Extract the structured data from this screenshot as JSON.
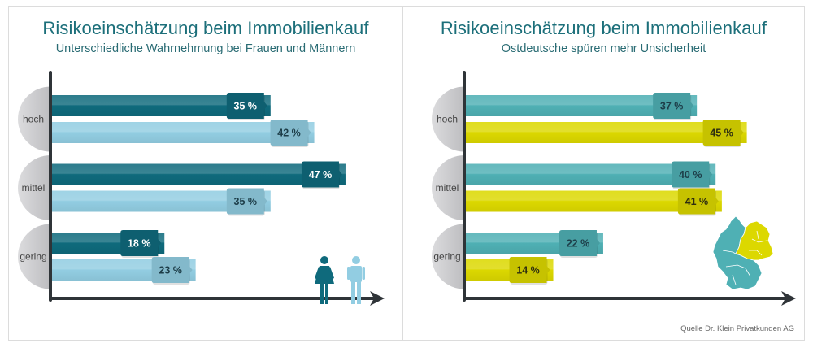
{
  "chart_data": [
    {
      "type": "bar",
      "orientation": "horizontal",
      "title": "Risikoeinschätzung beim Immobilienkauf",
      "subtitle": "Unterschiedliche Wahrnehmung bei Frauen und Männern",
      "categories": [
        "hoch",
        "mittel",
        "gering"
      ],
      "series": [
        {
          "name": "Frauen",
          "icon": "woman-icon",
          "color": "#0f6a7c",
          "label_color": "#ffffff",
          "values": [
            35,
            47,
            18
          ]
        },
        {
          "name": "Männer",
          "icon": "man-icon",
          "color": "#92cde2",
          "label_color": "#1d3d48",
          "values": [
            42,
            35,
            23
          ]
        }
      ],
      "value_suffix": " %",
      "xlim": [
        0,
        53
      ],
      "grid": false,
      "legend": "bottom-right"
    },
    {
      "type": "bar",
      "orientation": "horizontal",
      "title": "Risikoeinschätzung beim Immobilienkauf",
      "subtitle": "Ostdeutsche spüren mehr Unsicherheit",
      "categories": [
        "hoch",
        "mittel",
        "gering"
      ],
      "series": [
        {
          "name": "Westdeutschland",
          "icon": "germany-map-west-icon",
          "color": "#4fb0b4",
          "label_color": "#1d3d48",
          "values": [
            37,
            40,
            22
          ]
        },
        {
          "name": "Ostdeutschland",
          "icon": "germany-map-east-icon",
          "color": "#dcd800",
          "label_color": "#2e2e10",
          "values": [
            45,
            41,
            14
          ]
        }
      ],
      "value_suffix": " %",
      "xlim": [
        0,
        53
      ],
      "grid": false,
      "legend": "bottom-right"
    }
  ],
  "source": "Quelle Dr. Klein Privatkunden AG",
  "colors": {
    "title": "#1c6f7a",
    "axis": "#2f3438",
    "category_bubble": "#cfcfd1",
    "category_text": "#444444"
  }
}
